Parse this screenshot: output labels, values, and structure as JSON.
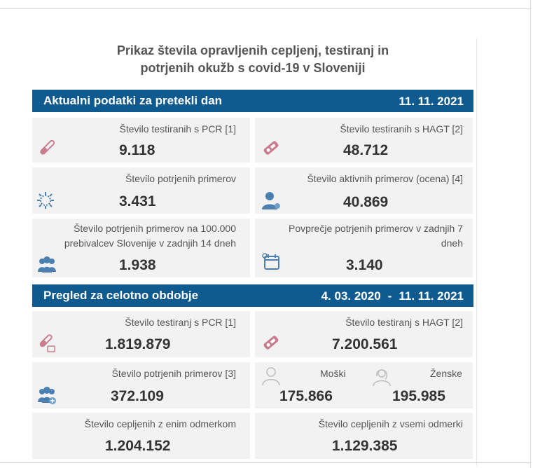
{
  "title": {
    "line1": "Prikaz števila opravljenih cepljenj, testiranj in",
    "line2": "potrjenih okužb s covid-19 v Sloveniji"
  },
  "daily": {
    "heading": "Aktualni podatki za pretekli dan",
    "date": "11. 11. 2021",
    "pcr": {
      "label": "Število testiranih s PCR [1]",
      "value": "9.118",
      "icon": "test-tube-icon"
    },
    "hagt": {
      "label": "Število testiranih s HAGT [2]",
      "value": "48.712",
      "icon": "rapid-test-icon"
    },
    "confirmed": {
      "label": "Število potrjenih primerov",
      "value": "3.431",
      "icon": "virus-icon"
    },
    "active": {
      "label": "Število aktivnih primerov (ocena) [4]",
      "value": "40.869",
      "icon": "person-icon"
    },
    "per100k": {
      "label_line1": "Število potrjenih primerov na 100.000",
      "label_line2": "prebivalcev Slovenije v zadnjih 14 dneh",
      "value": "1.938",
      "icon": "group-icon"
    },
    "avg7": {
      "label_line1": "Povprečje potrjenih primerov v zadnjih 7",
      "label_line2": "dneh",
      "value": "3.140",
      "icon": "calendar-icon"
    }
  },
  "period": {
    "heading": "Pregled za celotno obdobje",
    "date_from": "4. 03. 2020",
    "dash": "-",
    "date_to": "11. 11. 2021",
    "pcr": {
      "label": "Število testiranj s PCR [1]",
      "value": "1.819.879",
      "icon": "test-tube-icon"
    },
    "hagt": {
      "label": "Število testiranj s HAGT [2]",
      "value": "7.200.561",
      "icon": "rapid-test-icon"
    },
    "confirmed": {
      "label": "Število potrjenih primerov [3]",
      "value": "372.109",
      "icon": "group-plus-icon"
    },
    "male": {
      "label": "Moški",
      "value": "175.866",
      "icon": "male-icon"
    },
    "female": {
      "label": "Ženske",
      "value": "195.985",
      "icon": "female-icon"
    },
    "vacc1": {
      "label": "Število cepljenih z enim odmerkom",
      "value": "1.204.152"
    },
    "vacc_all": {
      "label": "Število cepljenih z vsemi odmerki",
      "value": "1.129.385"
    }
  },
  "colors": {
    "band": "#0f5a8e",
    "card": "#f2f2f2",
    "icon_pink": "#c97c8e",
    "icon_blue": "#4a7fb0"
  }
}
